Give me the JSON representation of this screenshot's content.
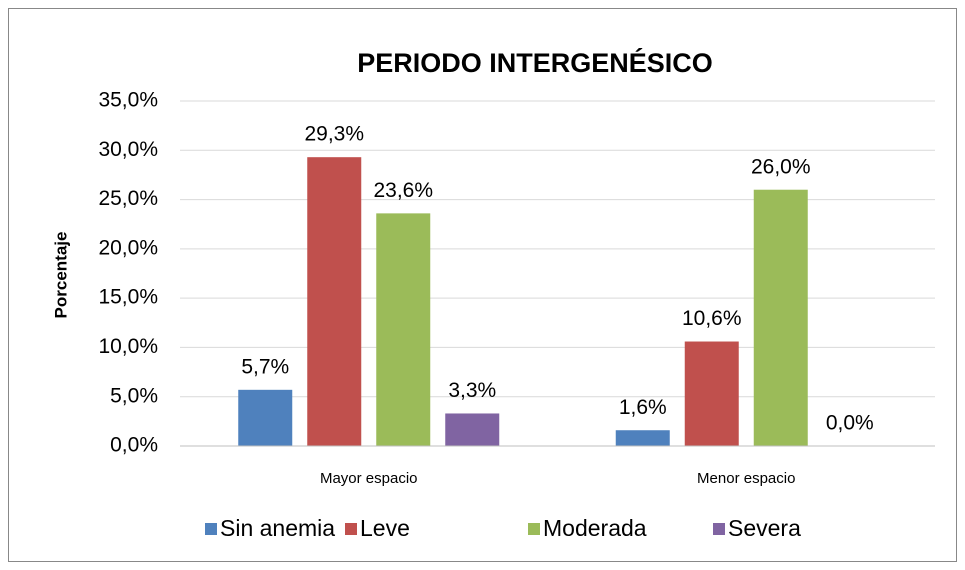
{
  "chart_data": {
    "type": "bar",
    "title": "PERIODO  INTERGENÉSICO",
    "y_label": "Porcentaje",
    "categories": [
      "Mayor espacio",
      "Menor espacio"
    ],
    "series": [
      {
        "name": "Sin anemia",
        "color": "#4f81bd",
        "values": [
          5.7,
          1.6
        ],
        "value_labels": [
          "5,7%",
          "1,6%"
        ]
      },
      {
        "name": "Leve",
        "color": "#c0504d",
        "values": [
          29.3,
          10.6
        ],
        "value_labels": [
          "29,3%",
          "10,6%"
        ]
      },
      {
        "name": "Moderada",
        "color": "#9bbb59",
        "values": [
          23.6,
          26.0
        ],
        "value_labels": [
          "23,6%",
          "26,0%"
        ]
      },
      {
        "name": "Severa",
        "color": "#8064a2",
        "values": [
          3.3,
          0.0
        ],
        "value_labels": [
          "3,3%",
          "0,0%"
        ]
      }
    ],
    "ylim": [
      0,
      35
    ],
    "yticks": [
      {
        "value": 0,
        "label": "0,0%"
      },
      {
        "value": 5,
        "label": "5,0%"
      },
      {
        "value": 10,
        "label": "10,0%"
      },
      {
        "value": 15,
        "label": "15,0%"
      },
      {
        "value": 20,
        "label": "20,0%"
      },
      {
        "value": 25,
        "label": "25,0%"
      },
      {
        "value": 30,
        "label": "30,0%"
      },
      {
        "value": 35,
        "label": "35,0%"
      }
    ],
    "grid": true,
    "legend": "bottom"
  }
}
